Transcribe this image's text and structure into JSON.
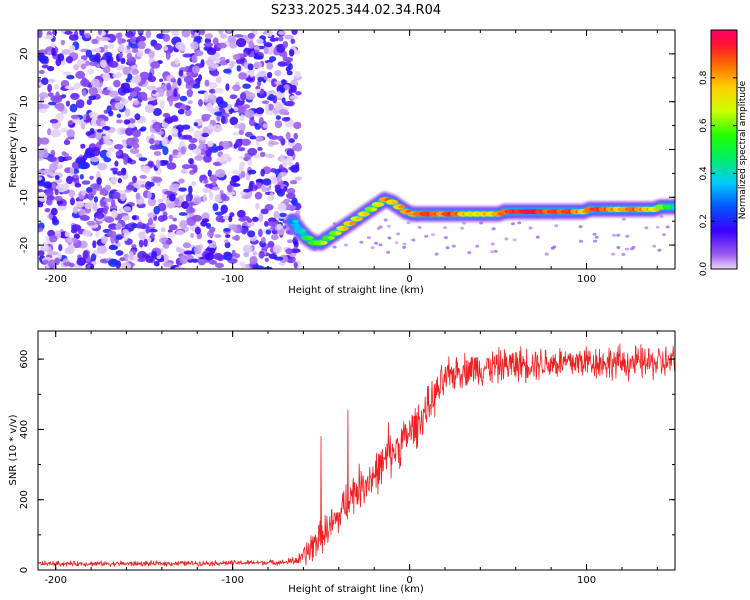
{
  "title": "S233.2025.344.02.34.R04",
  "chart_data": [
    {
      "type": "heatmap",
      "xlabel": "Height of straight line (km)",
      "ylabel": "Frequency (Hz)",
      "xlim": [
        -210,
        150
      ],
      "ylim": [
        -25,
        25
      ],
      "xticks": [
        -200,
        -100,
        0,
        100
      ],
      "yticks": [
        -20,
        -10,
        0,
        10,
        20
      ],
      "noise_region_x": [
        -210,
        -65
      ],
      "signal_track": {
        "x": [
          -66,
          -62,
          -58,
          -54,
          -50,
          -46,
          -42,
          -38,
          -34,
          -30,
          -26,
          -22,
          -18,
          -14,
          -10,
          -6,
          -2,
          2,
          6,
          10,
          14,
          18,
          22,
          26,
          30,
          34,
          38,
          42,
          46,
          50,
          54,
          58,
          62,
          66,
          70,
          74,
          78,
          82,
          86,
          90,
          94,
          98,
          102,
          106,
          110,
          114,
          118,
          122,
          126,
          130,
          134,
          138,
          142,
          146,
          150
        ],
        "y": [
          -15,
          -17,
          -18.5,
          -19.5,
          -19.5,
          -18.5,
          -17.5,
          -16.5,
          -15.5,
          -14.5,
          -13.5,
          -12.5,
          -11.5,
          -10.5,
          -11,
          -12,
          -13,
          -13.5,
          -13.5,
          -13.5,
          -13.5,
          -13.5,
          -13.5,
          -13.5,
          -13.5,
          -13.5,
          -13.5,
          -13.5,
          -13.5,
          -13.5,
          -13,
          -13,
          -13,
          -13,
          -13,
          -13,
          -13,
          -13,
          -13,
          -13,
          -13,
          -13,
          -12.5,
          -12.5,
          -12.5,
          -12.5,
          -12.5,
          -12.5,
          -12.5,
          -12.5,
          -12.5,
          -12.5,
          -12,
          -12,
          -12
        ],
        "amplitude": [
          0.3,
          0.35,
          0.5,
          0.55,
          0.6,
          0.55,
          0.6,
          0.7,
          0.75,
          0.7,
          0.7,
          0.6,
          0.65,
          0.8,
          0.7,
          0.75,
          0.8,
          0.8,
          0.85,
          0.9,
          0.85,
          0.8,
          0.9,
          0.85,
          0.75,
          0.7,
          0.7,
          0.75,
          0.7,
          0.8,
          0.85,
          0.9,
          0.9,
          0.95,
          0.95,
          0.9,
          0.85,
          0.9,
          0.85,
          0.9,
          0.8,
          0.75,
          0.85,
          0.9,
          0.85,
          0.8,
          0.75,
          0.8,
          0.85,
          0.8,
          0.75,
          0.7,
          0.6,
          0.5,
          0.4
        ]
      },
      "colorbar": {
        "label": "Normalized spectral amplitude",
        "ticks": [
          "0.0",
          "0.2",
          "0.4",
          "0.6",
          "0.8"
        ],
        "min": 0,
        "max": 1
      }
    },
    {
      "type": "line",
      "xlabel": "Height of straight line (km)",
      "ylabel": "SNR (10 * v/v)",
      "xlim": [
        -210,
        150
      ],
      "ylim": [
        0,
        680
      ],
      "xticks": [
        -200,
        -100,
        0,
        100
      ],
      "yticks": [
        0,
        200,
        400,
        600
      ],
      "series": [
        {
          "name": "SNR",
          "color": "#ee2222",
          "x": [
            -210,
            -150,
            -100,
            -70,
            -62,
            -56,
            -50,
            -45,
            -40,
            -35,
            -30,
            -25,
            -20,
            -15,
            -10,
            -5,
            0,
            5,
            10,
            15,
            20,
            25,
            30,
            40,
            50,
            60,
            70,
            80,
            90,
            100,
            110,
            120,
            130,
            140,
            150
          ],
          "y": [
            18,
            18,
            20,
            22,
            30,
            60,
            100,
            120,
            150,
            200,
            230,
            250,
            270,
            300,
            330,
            360,
            390,
            420,
            460,
            500,
            540,
            560,
            570,
            575,
            580,
            585,
            590,
            590,
            590,
            595,
            590,
            590,
            590,
            590,
            590
          ],
          "noise": [
            6,
            6,
            6,
            6,
            15,
            40,
            40,
            45,
            45,
            50,
            50,
            50,
            50,
            50,
            50,
            50,
            50,
            50,
            45,
            45,
            45,
            40,
            40,
            40,
            40,
            40,
            40,
            40,
            40,
            40,
            40,
            40,
            40,
            40,
            40
          ],
          "spikes": [
            {
              "x": -50,
              "y": 380
            },
            {
              "x": -35,
              "y": 455
            },
            {
              "x": -12,
              "y": 420
            }
          ]
        }
      ]
    }
  ]
}
